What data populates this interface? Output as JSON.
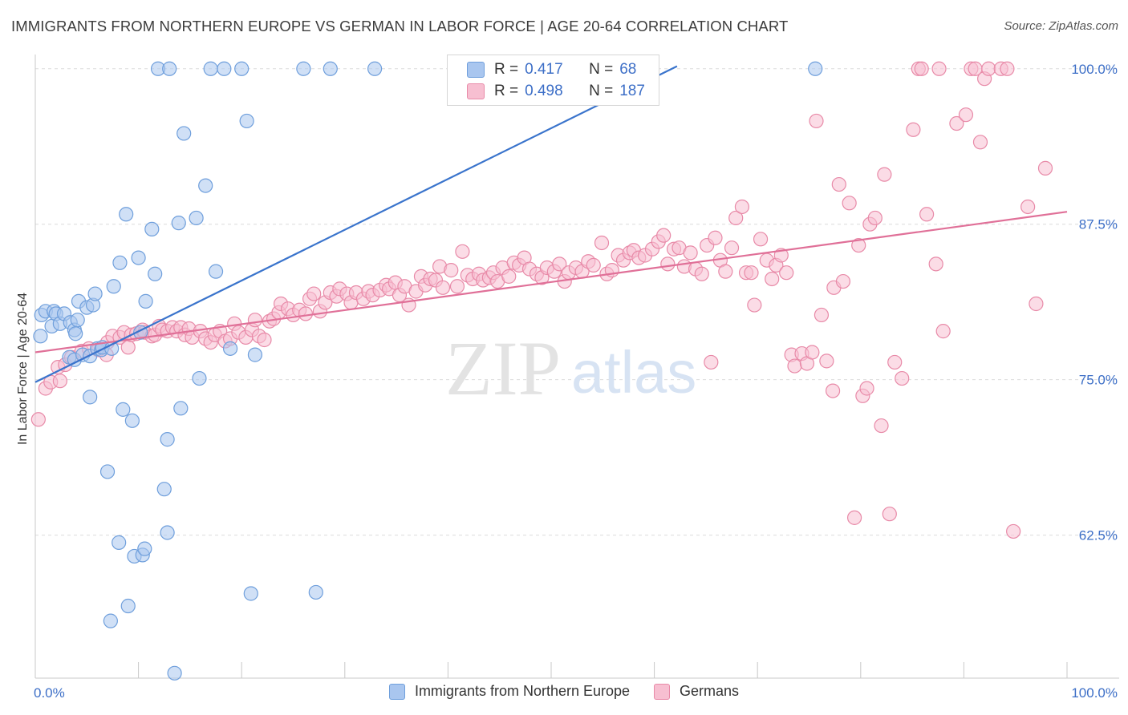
{
  "header": {
    "title": "IMMIGRANTS FROM NORTHERN EUROPE VS GERMAN IN LABOR FORCE | AGE 20-64 CORRELATION CHART",
    "source": "Source: ZipAtlas.com"
  },
  "watermark": {
    "zip": "ZIP",
    "atlas": "atlas"
  },
  "legend": {
    "rows": [
      {
        "r_label": "R =",
        "r_value": "0.417",
        "n_label": "N =",
        "n_value": "68",
        "color": "#a9c6ef",
        "border": "#6f9fdc"
      },
      {
        "r_label": "R =",
        "r_value": "0.498",
        "n_label": "N =",
        "n_value": "187",
        "color": "#f7bfd1",
        "border": "#e88aa8"
      }
    ]
  },
  "bottom_legend": {
    "items": [
      {
        "label": "Immigrants from Northern Europe",
        "color": "#a9c6ef",
        "border": "#6f9fdc"
      },
      {
        "label": "Germans",
        "color": "#f7bfd1",
        "border": "#e88aa8"
      }
    ]
  },
  "chart_data": {
    "type": "scatter",
    "xlabel": "",
    "ylabel": "In Labor Force | Age 20-64",
    "xlim": [
      0,
      100
    ],
    "ylim": [
      51,
      100.5
    ],
    "x_tick_labels": [
      "0.0%",
      "100.0%"
    ],
    "y_ticks": [
      62.5,
      75.0,
      87.5,
      100.0
    ],
    "y_tick_labels": [
      "62.5%",
      "75.0%",
      "87.5%",
      "100.0%"
    ],
    "grid": "horizontal dashed",
    "legend_position": "top-center",
    "series": [
      {
        "name": "Immigrants from Northern Europe",
        "color": "#a9c6ef",
        "stroke": "#6f9fdc",
        "trend_color": "#3a74cc",
        "trend": {
          "x": [
            0,
            62.2
          ],
          "y": [
            74.8,
            100.2
          ]
        },
        "points": [
          [
            0.5,
            78.5
          ],
          [
            0.6,
            80.2
          ],
          [
            1.0,
            80.5
          ],
          [
            1.6,
            79.3
          ],
          [
            1.8,
            80.5
          ],
          [
            2.0,
            80.3
          ],
          [
            2.4,
            79.5
          ],
          [
            2.8,
            80.3
          ],
          [
            3.4,
            79.6
          ],
          [
            3.3,
            76.8
          ],
          [
            3.8,
            79.0
          ],
          [
            3.8,
            76.6
          ],
          [
            4.1,
            79.8
          ],
          [
            3.9,
            78.7
          ],
          [
            4.2,
            81.3
          ],
          [
            4.6,
            77.0
          ],
          [
            5.0,
            80.8
          ],
          [
            5.6,
            81.0
          ],
          [
            5.3,
            76.9
          ],
          [
            5.8,
            81.9
          ],
          [
            6.0,
            77.5
          ],
          [
            6.4,
            77.4
          ],
          [
            6.5,
            77.6
          ],
          [
            7.4,
            77.5
          ],
          [
            5.3,
            73.6
          ],
          [
            7.0,
            67.6
          ],
          [
            7.6,
            82.5
          ],
          [
            8.2,
            84.4
          ],
          [
            8.1,
            61.9
          ],
          [
            8.5,
            72.6
          ],
          [
            8.8,
            88.3
          ],
          [
            9.0,
            56.8
          ],
          [
            9.4,
            71.7
          ],
          [
            7.3,
            55.6
          ],
          [
            9.6,
            60.8
          ],
          [
            10.0,
            84.8
          ],
          [
            10.4,
            60.9
          ],
          [
            10.6,
            61.4
          ],
          [
            10.2,
            78.8
          ],
          [
            10.7,
            81.3
          ],
          [
            11.3,
            87.1
          ],
          [
            11.6,
            83.5
          ],
          [
            11.9,
            100.0
          ],
          [
            12.5,
            66.2
          ],
          [
            12.8,
            62.7
          ],
          [
            12.8,
            70.2
          ],
          [
            13.0,
            100.0
          ],
          [
            13.5,
            51.4
          ],
          [
            13.9,
            87.6
          ],
          [
            14.1,
            72.7
          ],
          [
            14.4,
            94.8
          ],
          [
            15.6,
            88.0
          ],
          [
            15.9,
            75.1
          ],
          [
            16.5,
            90.6
          ],
          [
            17.0,
            100.0
          ],
          [
            17.5,
            83.7
          ],
          [
            18.3,
            100.0
          ],
          [
            18.9,
            77.5
          ],
          [
            20.0,
            100.0
          ],
          [
            20.5,
            95.8
          ],
          [
            21.3,
            77.0
          ],
          [
            20.9,
            57.8
          ],
          [
            26.0,
            100.0
          ],
          [
            27.2,
            57.9
          ],
          [
            28.6,
            100.0
          ],
          [
            32.9,
            100.0
          ],
          [
            56.8,
            100.0
          ],
          [
            75.6,
            100.0
          ]
        ]
      },
      {
        "name": "Germans",
        "color": "#f7bfd1",
        "stroke": "#e88aa8",
        "trend_color": "#e07098",
        "trend": {
          "x": [
            0,
            100
          ],
          "y": [
            77.2,
            88.5
          ]
        },
        "points": [
          [
            0.3,
            71.8
          ],
          [
            1.0,
            74.3
          ],
          [
            1.5,
            74.8
          ],
          [
            2.2,
            76.0
          ],
          [
            2.4,
            74.9
          ],
          [
            2.9,
            76.2
          ],
          [
            3.5,
            76.8
          ],
          [
            4.5,
            77.3
          ],
          [
            5.2,
            77.5
          ],
          [
            6.1,
            77.4
          ],
          [
            6.9,
            77.0
          ],
          [
            7.0,
            78.0
          ],
          [
            7.5,
            78.5
          ],
          [
            8.2,
            78.4
          ],
          [
            8.6,
            78.8
          ],
          [
            9.0,
            77.6
          ],
          [
            9.3,
            78.6
          ],
          [
            9.8,
            78.7
          ],
          [
            10.4,
            79.0
          ],
          [
            10.6,
            78.8
          ],
          [
            11.3,
            78.5
          ],
          [
            11.6,
            78.6
          ],
          [
            12.0,
            79.3
          ],
          [
            12.3,
            79.0
          ],
          [
            12.8,
            78.9
          ],
          [
            13.3,
            79.2
          ],
          [
            13.7,
            78.9
          ],
          [
            14.1,
            79.2
          ],
          [
            14.5,
            78.6
          ],
          [
            14.9,
            79.1
          ],
          [
            15.2,
            78.4
          ],
          [
            16.0,
            78.9
          ],
          [
            16.5,
            78.3
          ],
          [
            17.0,
            78.0
          ],
          [
            17.4,
            78.6
          ],
          [
            17.9,
            78.9
          ],
          [
            18.4,
            78.1
          ],
          [
            18.9,
            78.3
          ],
          [
            19.3,
            79.5
          ],
          [
            19.7,
            78.8
          ],
          [
            20.4,
            78.4
          ],
          [
            21.0,
            79.0
          ],
          [
            21.3,
            79.8
          ],
          [
            21.7,
            78.5
          ],
          [
            22.2,
            78.2
          ],
          [
            22.7,
            79.7
          ],
          [
            23.1,
            79.9
          ],
          [
            23.6,
            80.4
          ],
          [
            23.8,
            81.1
          ],
          [
            24.5,
            80.7
          ],
          [
            25.0,
            80.2
          ],
          [
            25.6,
            80.6
          ],
          [
            26.2,
            80.3
          ],
          [
            26.6,
            81.5
          ],
          [
            27.0,
            81.9
          ],
          [
            27.6,
            80.5
          ],
          [
            28.1,
            81.2
          ],
          [
            28.6,
            82.0
          ],
          [
            29.2,
            81.7
          ],
          [
            29.5,
            82.3
          ],
          [
            30.2,
            81.9
          ],
          [
            30.6,
            81.2
          ],
          [
            31.1,
            82.0
          ],
          [
            31.8,
            81.5
          ],
          [
            32.3,
            82.1
          ],
          [
            32.7,
            81.8
          ],
          [
            33.4,
            82.2
          ],
          [
            34.0,
            82.6
          ],
          [
            34.3,
            82.3
          ],
          [
            34.9,
            82.8
          ],
          [
            35.3,
            81.8
          ],
          [
            35.8,
            82.5
          ],
          [
            36.2,
            81.0
          ],
          [
            36.9,
            82.1
          ],
          [
            37.4,
            83.3
          ],
          [
            37.8,
            82.6
          ],
          [
            38.3,
            83.1
          ],
          [
            38.8,
            83.0
          ],
          [
            39.2,
            84.1
          ],
          [
            39.5,
            82.4
          ],
          [
            40.3,
            83.8
          ],
          [
            40.9,
            82.5
          ],
          [
            41.4,
            85.3
          ],
          [
            41.9,
            83.4
          ],
          [
            42.4,
            83.1
          ],
          [
            43.0,
            83.5
          ],
          [
            43.4,
            83.0
          ],
          [
            44.0,
            83.2
          ],
          [
            44.4,
            83.6
          ],
          [
            44.8,
            82.9
          ],
          [
            45.3,
            84.0
          ],
          [
            45.9,
            83.3
          ],
          [
            46.4,
            84.4
          ],
          [
            46.9,
            84.2
          ],
          [
            47.4,
            84.8
          ],
          [
            47.9,
            83.9
          ],
          [
            48.6,
            83.5
          ],
          [
            49.1,
            83.2
          ],
          [
            49.6,
            84.0
          ],
          [
            50.3,
            83.7
          ],
          [
            50.8,
            84.3
          ],
          [
            51.3,
            82.9
          ],
          [
            51.7,
            83.6
          ],
          [
            52.4,
            84.0
          ],
          [
            53.0,
            83.7
          ],
          [
            53.6,
            84.5
          ],
          [
            54.1,
            84.2
          ],
          [
            54.9,
            86.0
          ],
          [
            55.4,
            83.5
          ],
          [
            55.9,
            83.8
          ],
          [
            56.5,
            85.0
          ],
          [
            57.0,
            84.6
          ],
          [
            57.6,
            85.2
          ],
          [
            58.0,
            85.4
          ],
          [
            58.5,
            84.8
          ],
          [
            59.1,
            85.0
          ],
          [
            59.8,
            85.5
          ],
          [
            60.4,
            86.1
          ],
          [
            60.9,
            86.6
          ],
          [
            61.3,
            84.3
          ],
          [
            61.9,
            85.5
          ],
          [
            62.4,
            85.6
          ],
          [
            62.9,
            84.1
          ],
          [
            63.5,
            85.2
          ],
          [
            64.0,
            83.9
          ],
          [
            64.6,
            83.5
          ],
          [
            65.1,
            85.8
          ],
          [
            65.5,
            76.4
          ],
          [
            65.9,
            86.4
          ],
          [
            66.4,
            84.6
          ],
          [
            66.9,
            83.7
          ],
          [
            67.5,
            85.6
          ],
          [
            67.9,
            88.0
          ],
          [
            68.5,
            88.9
          ],
          [
            68.9,
            83.6
          ],
          [
            69.4,
            83.6
          ],
          [
            69.7,
            81.0
          ],
          [
            70.3,
            86.3
          ],
          [
            70.9,
            84.6
          ],
          [
            71.4,
            83.1
          ],
          [
            71.8,
            84.2
          ],
          [
            72.3,
            85.0
          ],
          [
            72.8,
            83.6
          ],
          [
            73.3,
            77.0
          ],
          [
            73.6,
            76.1
          ],
          [
            74.3,
            77.1
          ],
          [
            74.8,
            76.3
          ],
          [
            75.3,
            77.2
          ],
          [
            75.7,
            95.8
          ],
          [
            76.2,
            80.2
          ],
          [
            76.7,
            76.5
          ],
          [
            77.4,
            82.4
          ],
          [
            77.9,
            90.7
          ],
          [
            77.3,
            74.1
          ],
          [
            78.3,
            82.9
          ],
          [
            78.9,
            89.2
          ],
          [
            79.4,
            63.9
          ],
          [
            79.8,
            85.8
          ],
          [
            80.2,
            73.7
          ],
          [
            80.6,
            74.3
          ],
          [
            80.9,
            87.5
          ],
          [
            81.4,
            88.0
          ],
          [
            82.0,
            71.3
          ],
          [
            82.3,
            91.5
          ],
          [
            82.8,
            64.2
          ],
          [
            83.3,
            76.4
          ],
          [
            84.0,
            75.1
          ],
          [
            85.1,
            95.1
          ],
          [
            85.6,
            100.0
          ],
          [
            85.9,
            100.0
          ],
          [
            86.4,
            88.3
          ],
          [
            87.3,
            84.3
          ],
          [
            87.6,
            100.0
          ],
          [
            88.0,
            78.9
          ],
          [
            89.3,
            95.6
          ],
          [
            90.2,
            96.3
          ],
          [
            90.7,
            100.0
          ],
          [
            91.1,
            100.0
          ],
          [
            91.6,
            94.1
          ],
          [
            92.0,
            99.2
          ],
          [
            92.4,
            100.0
          ],
          [
            93.6,
            100.0
          ],
          [
            94.2,
            100.0
          ],
          [
            94.8,
            62.8
          ],
          [
            96.2,
            88.9
          ],
          [
            97.0,
            81.1
          ],
          [
            97.9,
            92.0
          ]
        ]
      }
    ]
  }
}
